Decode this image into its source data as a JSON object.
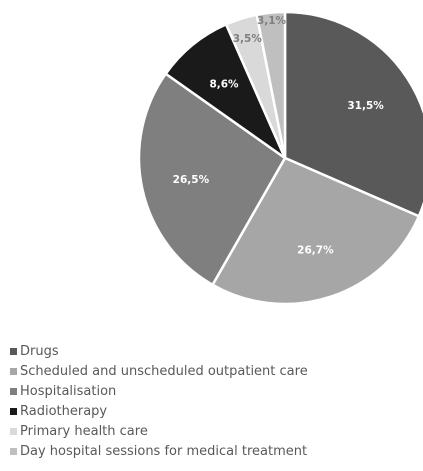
{
  "chart_data": {
    "type": "pie",
    "title": "",
    "legend_position": "bottom",
    "categories": [
      "Drugs",
      "Scheduled and unscheduled outpatient care",
      "Hospitalisation",
      "Radiotherapy",
      "Primary health care",
      "Day hospital sessions for medical treatment"
    ],
    "values": [
      31.5,
      26.7,
      26.5,
      8.6,
      3.5,
      3.1
    ],
    "labels": [
      "31,5%",
      "26,7%",
      "26,5%",
      "8,6%",
      "3,5%",
      "3,1%"
    ],
    "colors": [
      "#595959",
      "#a6a6a6",
      "#7f7f7f",
      "#1a1a1a",
      "#d9d9d9",
      "#bfbfbf"
    ],
    "label_colors": [
      "#ffffff",
      "#ffffff",
      "#ffffff",
      "#ffffff",
      "#7f7f7f",
      "#7f7f7f"
    ]
  }
}
